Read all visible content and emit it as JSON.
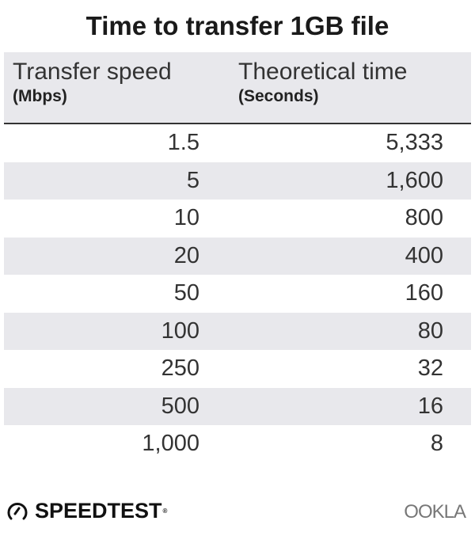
{
  "title": "Time to transfer 1GB file",
  "chart_data": {
    "type": "table",
    "title": "Time to transfer 1GB file",
    "columns": [
      {
        "label": "Transfer speed",
        "unit": "(Mbps)"
      },
      {
        "label": "Theoretical time",
        "unit": "(Seconds)"
      }
    ],
    "rows": [
      [
        "1.5",
        "5,333"
      ],
      [
        "5",
        "1,600"
      ],
      [
        "10",
        "800"
      ],
      [
        "20",
        "400"
      ],
      [
        "50",
        "160"
      ],
      [
        "100",
        "80"
      ],
      [
        "250",
        "32"
      ],
      [
        "500",
        "16"
      ],
      [
        "1,000",
        "8"
      ]
    ]
  },
  "colors": {
    "header_bg": "#e8e8ec",
    "alt_row_bg": "#e8e8ec",
    "text": "#333333"
  },
  "footer": {
    "left_logo": "SPEEDTEST",
    "right_logo": "OOKLA"
  }
}
